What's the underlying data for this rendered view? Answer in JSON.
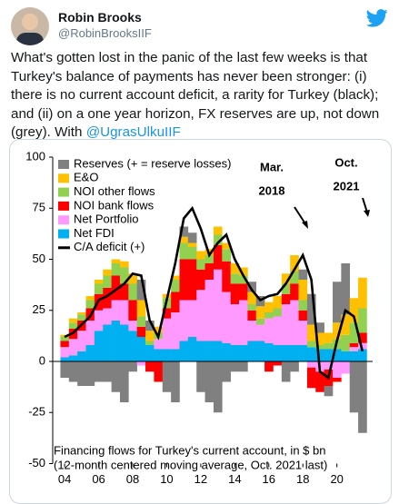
{
  "tweet": {
    "name": "Robin Brooks",
    "handle": "@RobinBrooksIIF",
    "text": "What's gotten lost in the panic of the last few weeks is that Turkey's balance of payments has never been stronger: (i) there is no current account deficit, a rarity for Turkey (black); and (ii) on a one year horizon, FX reserves are up, not down (grey). With ",
    "mention": "@UgrasUlkuIIF"
  },
  "chart_data": {
    "type": "bar",
    "stacked": true,
    "caption": [
      "Financing flows for Turkey's current account, in $ bn",
      "(12-month centered moving average, Oct. 2021 last)"
    ],
    "annotations": [
      {
        "lines": [
          "Mar.",
          "2018"
        ]
      },
      {
        "lines": [
          "Oct.",
          "2021"
        ]
      }
    ],
    "x": [
      2004,
      2004.5,
      2005,
      2005.5,
      2006,
      2006.5,
      2007,
      2007.5,
      2008,
      2008.5,
      2009,
      2009.5,
      2010,
      2010.5,
      2011,
      2011.5,
      2012,
      2012.5,
      2013,
      2013.5,
      2014,
      2014.5,
      2015,
      2015.5,
      2016,
      2016.5,
      2017,
      2017.5,
      2018,
      2018.5,
      2019,
      2019.5,
      2020,
      2020.5,
      2021,
      2021.5
    ],
    "series": [
      {
        "name": "Net FDI",
        "color": "#00b0f0",
        "values": [
          2,
          3,
          5,
          8,
          15,
          18,
          20,
          18,
          15,
          12,
          8,
          6,
          6,
          6,
          10,
          12,
          10,
          10,
          10,
          9,
          8,
          8,
          10,
          10,
          9,
          8,
          8,
          8,
          8,
          7,
          6,
          6,
          6,
          5,
          5,
          6
        ]
      },
      {
        "name": "Net Portfolio",
        "color": "#ff99ff",
        "values": [
          5,
          8,
          10,
          12,
          10,
          8,
          10,
          12,
          5,
          -2,
          0,
          5,
          15,
          18,
          20,
          18,
          25,
          30,
          35,
          25,
          20,
          22,
          10,
          8,
          12,
          14,
          20,
          22,
          12,
          -3,
          -5,
          -4,
          -8,
          -6,
          2,
          3
        ]
      },
      {
        "name": "NOI bank flows",
        "color": "#ff0000",
        "values": [
          3,
          5,
          5,
          6,
          8,
          10,
          12,
          8,
          10,
          5,
          -5,
          -10,
          5,
          10,
          20,
          20,
          10,
          8,
          12,
          15,
          10,
          8,
          5,
          0,
          -5,
          -2,
          5,
          8,
          5,
          -10,
          -10,
          -8,
          -2,
          0,
          2,
          5
        ]
      },
      {
        "name": "NOI other flows",
        "color": "#92d050",
        "values": [
          2,
          3,
          3,
          4,
          5,
          6,
          6,
          8,
          8,
          5,
          2,
          3,
          5,
          6,
          8,
          6,
          5,
          4,
          5,
          6,
          5,
          4,
          3,
          3,
          3,
          4,
          5,
          6,
          5,
          3,
          2,
          3,
          5,
          8,
          10,
          12
        ]
      },
      {
        "name": "E&O",
        "color": "#ffc000",
        "values": [
          1,
          2,
          1,
          2,
          2,
          3,
          2,
          3,
          5,
          8,
          5,
          3,
          2,
          2,
          3,
          2,
          4,
          3,
          4,
          3,
          5,
          4,
          6,
          6,
          5,
          6,
          5,
          8,
          10,
          8,
          6,
          5,
          8,
          10,
          12,
          15
        ]
      },
      {
        "name": "Reserves (+ = reserve losses)",
        "color": "#808080",
        "values": [
          -8,
          -10,
          -12,
          -12,
          -10,
          -10,
          -15,
          -20,
          -5,
          10,
          5,
          0,
          -15,
          -20,
          5,
          5,
          -15,
          -20,
          -25,
          -10,
          -5,
          -5,
          5,
          5,
          0,
          0,
          -10,
          -5,
          5,
          15,
          5,
          -5,
          20,
          25,
          -25,
          -35
        ]
      }
    ],
    "line": {
      "name": "C/A deficit (+)",
      "color": "#000000",
      "values": [
        12,
        14,
        18,
        22,
        30,
        32,
        35,
        38,
        43,
        42,
        20,
        12,
        30,
        48,
        70,
        75,
        65,
        52,
        58,
        62,
        50,
        42,
        35,
        30,
        32,
        33,
        38,
        45,
        52,
        40,
        -5,
        -8,
        10,
        25,
        22,
        5
      ]
    },
    "xlim": [
      2003.3,
      2022.1
    ],
    "xticks": [
      {
        "value": 2004,
        "label": "04"
      },
      {
        "value": 2006,
        "label": "06"
      },
      {
        "value": 2008,
        "label": "08"
      },
      {
        "value": 2010,
        "label": "10"
      },
      {
        "value": 2012,
        "label": "12"
      },
      {
        "value": 2014,
        "label": "14"
      },
      {
        "value": 2016,
        "label": "16"
      },
      {
        "value": 2018,
        "label": "18"
      },
      {
        "value": 2020,
        "label": "20"
      }
    ],
    "ylim": [
      -50,
      100
    ],
    "yticks": [
      100,
      75,
      50,
      25,
      0,
      -25,
      -50
    ]
  }
}
